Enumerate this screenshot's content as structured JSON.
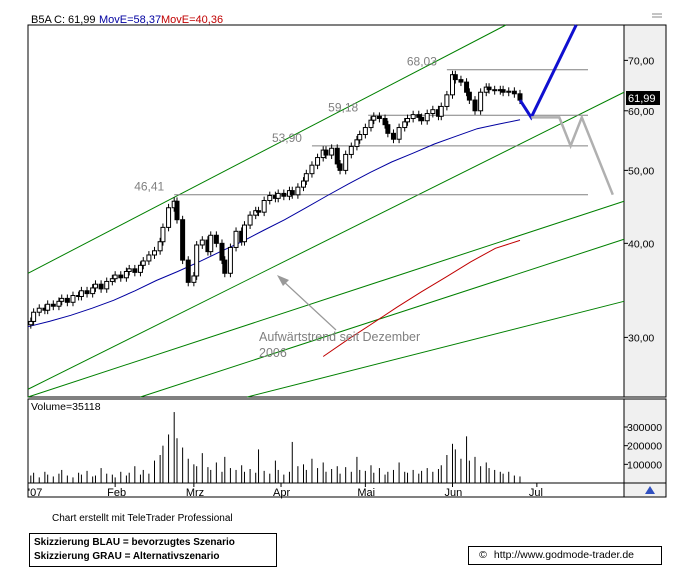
{
  "header": {
    "symbol": "B5A",
    "close_label": "C:",
    "close_value": "61,99",
    "move1_text": "MovE=58,37",
    "move2_text": "MovE=40,36"
  },
  "price_badge": "61,99",
  "volume_label": "Volume=35118",
  "annotation": {
    "line1": "Aufwärtstrend seit Dezember",
    "line2": "2006"
  },
  "credit": "Chart erstellt mit TeleTrader Professional",
  "legend": {
    "blue": "Skizzierung BLAU = bevorzugtes Szenario",
    "grey": "Skizzierung GRAU = Alternativszenario"
  },
  "source": {
    "symbol": "©",
    "url": "http://www.godmode-trader.de"
  },
  "colors": {
    "candle": "#000000",
    "ma_fast": "#0000a0",
    "ma_slow": "#c00000",
    "trend_channel": "#008000",
    "support_lines": "#808080",
    "scenario_blue": "#1010d0",
    "scenario_grey": "#b0b0b0",
    "axis_panel": "#f0f0f0"
  },
  "chart_data": {
    "type": "candlestick",
    "x_axis": {
      "tick_labels": [
        "'07",
        "Feb",
        "Mrz",
        "Apr",
        "Mai",
        "Jun",
        "Jul"
      ],
      "range": [
        "2007-01-01",
        "2007-08-01"
      ]
    },
    "price_axis": {
      "scale": "log",
      "range": [
        25,
        78
      ],
      "tick_labels": [
        "70,00",
        "60,00",
        "50,00",
        "40,00",
        "30,00"
      ],
      "tick_values": [
        70,
        60,
        50,
        40,
        30
      ],
      "position": "right"
    },
    "volume_axis": {
      "range": [
        0,
        450000
      ],
      "tick_labels": [
        "300000",
        "200000",
        "100000"
      ],
      "tick_values": [
        300000,
        200000,
        100000
      ]
    },
    "price_levels": [
      {
        "label": "46,41",
        "value": 46.41,
        "from": "2007-02-22"
      },
      {
        "label": "53,90",
        "value": 53.9,
        "from": "2007-04-12"
      },
      {
        "label": "59,18",
        "value": 59.18,
        "from": "2007-05-02"
      },
      {
        "label": "68,03",
        "value": 68.03,
        "from": "2007-05-30"
      }
    ],
    "candles_close": [
      31.5,
      32.4,
      32.8,
      32.6,
      33.2,
      33.0,
      33.5,
      33.8,
      33.4,
      34.1,
      34.0,
      34.6,
      34.3,
      34.9,
      35.3,
      34.8,
      35.6,
      35.9,
      36.3,
      36.0,
      36.7,
      37.0,
      36.6,
      37.4,
      37.9,
      38.6,
      39.1,
      40.2,
      42.0,
      44.6,
      45.5,
      43.0,
      38.0,
      35.5,
      36.2,
      39.8,
      40.4,
      39.0,
      41.0,
      40.0,
      38.0,
      36.5,
      39.5,
      41.5,
      40.2,
      42.3,
      43.6,
      44.2,
      44.0,
      45.6,
      46.3,
      45.9,
      46.6,
      46.2,
      47.0,
      46.4,
      47.5,
      48.4,
      49.5,
      50.8,
      52.0,
      53.2,
      52.4,
      53.5,
      51.0,
      50.0,
      52.5,
      53.8,
      54.9,
      55.8,
      57.0,
      58.3,
      59.0,
      58.6,
      57.5,
      56.0,
      55.0,
      57.0,
      58.0,
      58.6,
      59.3,
      58.8,
      58.2,
      59.5,
      60.2,
      59.0,
      60.8,
      63.0,
      67.0,
      66.0,
      65.5,
      63.5,
      62.0,
      60.0,
      63.5,
      64.5,
      64.0,
      63.8,
      64.0,
      63.5,
      63.7,
      63.2,
      61.99
    ],
    "candles_first_date": "2007-01-02",
    "candles_last_date": "2007-06-25",
    "volume": [
      40000,
      55000,
      30000,
      60000,
      45000,
      35000,
      50000,
      70000,
      40000,
      30000,
      55000,
      45000,
      65000,
      35000,
      40000,
      80000,
      50000,
      45000,
      30000,
      60000,
      40000,
      55000,
      90000,
      45000,
      70000,
      50000,
      120000,
      150000,
      200000,
      260000,
      380000,
      240000,
      190000,
      130000,
      100000,
      90000,
      160000,
      85000,
      70000,
      110000,
      60000,
      140000,
      80000,
      70000,
      95000,
      60000,
      75000,
      55000,
      180000,
      65000,
      50000,
      120000,
      70000,
      45000,
      60000,
      220000,
      90000,
      100000,
      70000,
      130000,
      80000,
      110000,
      60000,
      75000,
      90000,
      50000,
      85000,
      60000,
      140000,
      70000,
      65000,
      95000,
      55000,
      80000,
      45000,
      60000,
      70000,
      110000,
      60000,
      55000,
      70000,
      50000,
      65000,
      80000,
      60000,
      75000,
      95000,
      150000,
      210000,
      180000,
      130000,
      250000,
      120000,
      140000,
      90000,
      110000,
      80000,
      70000,
      60000,
      50000,
      60000,
      40000,
      35118
    ],
    "series": [
      {
        "name": "MovE=58,37",
        "type": "moving-average",
        "values": [
          31.0,
          31.5,
          32.1,
          32.8,
          33.6,
          34.6,
          35.7,
          36.7,
          37.8,
          39.0,
          40.2,
          41.6,
          43.0,
          44.6,
          46.3,
          48.0,
          49.7,
          51.3,
          52.7,
          54.2,
          55.5,
          56.8,
          57.6,
          58.37
        ]
      },
      {
        "name": "MovE=40,36",
        "type": "moving-average",
        "values": [
          28.3,
          29.8,
          31.3,
          32.9,
          34.5,
          36.1,
          37.8,
          39.4,
          40.36
        ]
      }
    ],
    "trendlines": [
      {
        "name": "channel-upper",
        "from": {
          "date": "2007-01-01",
          "value": 36.5
        },
        "to": {
          "date": "2007-06-20",
          "value": 78
        }
      },
      {
        "name": "channel-lower",
        "from": {
          "date": "2007-01-01",
          "value": 25.6
        },
        "to": {
          "date": "2007-08-01",
          "value": 63.5
        }
      },
      {
        "name": "support-1",
        "from": {
          "date": "2007-01-01",
          "value": 25
        },
        "to": {
          "date": "2007-08-01",
          "value": 45.5
        }
      },
      {
        "name": "support-2",
        "from": {
          "date": "2007-02-10",
          "value": 25
        },
        "to": {
          "date": "2007-08-01",
          "value": 40.5
        }
      },
      {
        "name": "support-3",
        "from": {
          "date": "2007-03-20",
          "value": 25
        },
        "to": {
          "date": "2007-08-01",
          "value": 33.5
        }
      }
    ],
    "scenarios": [
      {
        "name": "bevorzugtes Szenario",
        "color": "blue",
        "points": [
          {
            "date": "2007-06-25",
            "value": 61.99
          },
          {
            "date": "2007-06-29",
            "value": 58.8
          },
          {
            "date": "2007-07-15",
            "value": 78
          }
        ]
      },
      {
        "name": "Alternativszenario",
        "color": "grey",
        "points": [
          {
            "date": "2007-06-29",
            "value": 58.8
          },
          {
            "date": "2007-07-09",
            "value": 58.8
          },
          {
            "date": "2007-07-13",
            "value": 53.9
          },
          {
            "date": "2007-07-17",
            "value": 58.8
          },
          {
            "date": "2007-07-28",
            "value": 46.41
          }
        ]
      }
    ]
  }
}
